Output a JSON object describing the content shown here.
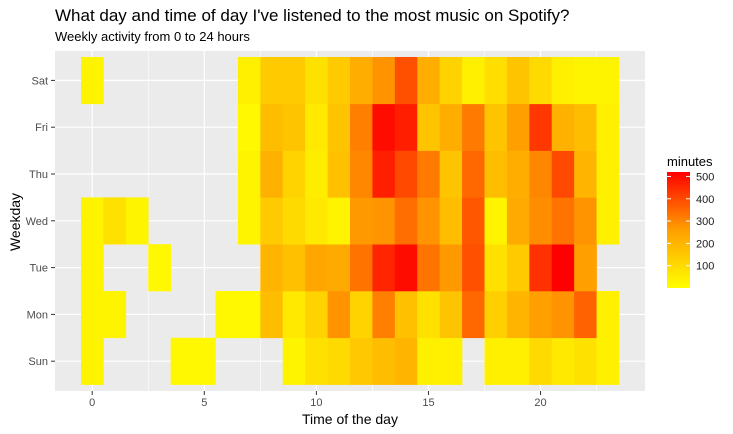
{
  "chart_data": {
    "type": "heatmap",
    "title": "What day and time of day I've listened to the most music on Spotify?",
    "subtitle": "Weekly activity from 0 to 24 hours",
    "xlabel": "Time of the day",
    "ylabel": "Weekday",
    "x_ticks": [
      0,
      5,
      10,
      15,
      20
    ],
    "x_range": [
      -0.5,
      23.5
    ],
    "y_categories": [
      "Sun",
      "Mon",
      "Tue",
      "Wed",
      "Thu",
      "Fri",
      "Sat"
    ],
    "legend": {
      "title": "minutes",
      "min": 0,
      "max": 520,
      "breaks": [
        100,
        200,
        300,
        400,
        500
      ]
    },
    "hours": [
      0,
      1,
      2,
      3,
      4,
      5,
      6,
      7,
      8,
      9,
      10,
      11,
      12,
      13,
      14,
      15,
      16,
      17,
      18,
      19,
      20,
      21,
      22,
      23
    ],
    "values": {
      "Sun": [
        30,
        null,
        null,
        null,
        20,
        20,
        null,
        null,
        null,
        30,
        80,
        100,
        150,
        180,
        200,
        40,
        40,
        null,
        40,
        40,
        100,
        60,
        80,
        40
      ],
      "Mon": [
        30,
        30,
        null,
        null,
        null,
        null,
        20,
        20,
        180,
        60,
        120,
        280,
        120,
        310,
        170,
        80,
        160,
        350,
        130,
        200,
        260,
        280,
        360,
        40
      ],
      "Tue": [
        30,
        null,
        null,
        20,
        null,
        null,
        null,
        null,
        200,
        170,
        240,
        230,
        330,
        460,
        500,
        330,
        270,
        390,
        80,
        140,
        440,
        520,
        260,
        null
      ],
      "Wed": [
        30,
        80,
        30,
        null,
        null,
        null,
        null,
        30,
        140,
        100,
        60,
        30,
        270,
        280,
        340,
        280,
        180,
        380,
        30,
        230,
        290,
        330,
        280,
        40
      ],
      "Thu": [
        null,
        null,
        null,
        null,
        null,
        null,
        null,
        30,
        210,
        120,
        50,
        170,
        300,
        470,
        400,
        320,
        160,
        350,
        180,
        220,
        300,
        400,
        200,
        40
      ],
      "Fri": [
        null,
        null,
        null,
        null,
        null,
        null,
        null,
        20,
        180,
        160,
        60,
        160,
        310,
        500,
        470,
        160,
        220,
        320,
        160,
        260,
        430,
        210,
        180,
        40
      ],
      "Sat": [
        30,
        null,
        null,
        null,
        null,
        null,
        null,
        40,
        140,
        140,
        80,
        140,
        220,
        280,
        390,
        220,
        120,
        40,
        90,
        160,
        100,
        40,
        30,
        30
      ]
    }
  }
}
